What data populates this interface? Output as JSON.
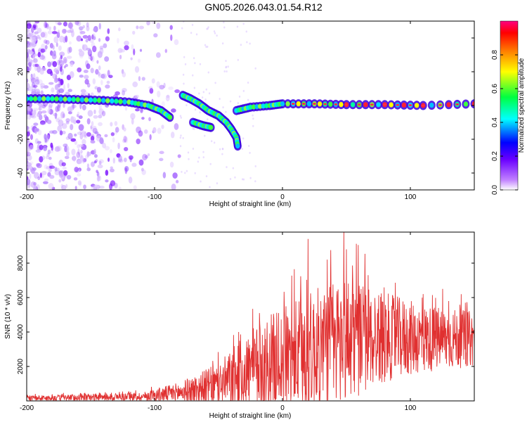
{
  "title": "GN05.2026.043.01.54.R12",
  "chart_data": [
    {
      "type": "heatmap",
      "name": "spectrogram",
      "xlabel": "Height of straight line (km)",
      "ylabel": "Frequency (Hz)",
      "xlim": [
        -200,
        150
      ],
      "ylim": [
        -50,
        50
      ],
      "xticks": [
        -200,
        -100,
        0,
        100
      ],
      "yticks": [
        -40,
        -20,
        0,
        20,
        40
      ],
      "colorbar": {
        "label": "Normalized spectral amplitude",
        "range": [
          0,
          1
        ],
        "ticks": [
          "0.0",
          "0.2",
          "0.4",
          "0.6",
          "0.8"
        ],
        "colors": [
          "#ffffff",
          "#8000ff",
          "#0000ff",
          "#00ffff",
          "#00ff00",
          "#ffff00",
          "#ff8000",
          "#ff0000",
          "#ff0080"
        ]
      },
      "ridge": [
        {
          "x": -200,
          "f": 4
        },
        {
          "x": -180,
          "f": 4
        },
        {
          "x": -160,
          "f": 3.5
        },
        {
          "x": -140,
          "f": 3
        },
        {
          "x": -120,
          "f": 2
        },
        {
          "x": -100,
          "f": 0
        },
        {
          "x": -90,
          "f": -3
        },
        {
          "x": -85,
          "f": -7
        },
        {
          "x": -78,
          "f": 6
        },
        {
          "x": -70,
          "f": 4
        },
        {
          "x": -60,
          "f": 0
        },
        {
          "x": -50,
          "f": -5
        },
        {
          "x": -40,
          "f": -12
        },
        {
          "x": -35,
          "f": -22
        },
        {
          "x": -35,
          "f": -2
        },
        {
          "x": -20,
          "f": 0
        },
        {
          "x": 0,
          "f": 1
        },
        {
          "x": 50,
          "f": 1
        },
        {
          "x": 100,
          "f": 0.5
        },
        {
          "x": 150,
          "f": 1
        }
      ]
    },
    {
      "type": "line",
      "name": "snr",
      "xlabel": "Height of straight line (km)",
      "ylabel": "SNR (10 * v/v)",
      "xlim": [
        -200,
        150
      ],
      "ylim": [
        0,
        9800
      ],
      "xticks": [
        -200,
        -100,
        0,
        100
      ],
      "yticks": [
        2000,
        4000,
        6000,
        8000
      ],
      "color": "#e03030",
      "envelope": [
        {
          "x": -200,
          "base": 150,
          "amp": 150
        },
        {
          "x": -110,
          "base": 250,
          "amp": 250
        },
        {
          "x": -80,
          "base": 500,
          "amp": 600
        },
        {
          "x": -50,
          "base": 900,
          "amp": 1300
        },
        {
          "x": -30,
          "base": 1600,
          "amp": 2200
        },
        {
          "x": -10,
          "base": 2200,
          "amp": 2800
        },
        {
          "x": 20,
          "base": 2800,
          "amp": 3500
        },
        {
          "x": 50,
          "base": 3600,
          "amp": 3800
        },
        {
          "x": 80,
          "base": 3700,
          "amp": 2600
        },
        {
          "x": 110,
          "base": 3600,
          "amp": 2000
        },
        {
          "x": 150,
          "base": 3600,
          "amp": 1600
        }
      ],
      "peaks": [
        {
          "x": 20,
          "y": 9400
        },
        {
          "x": 48,
          "y": 9800
        },
        {
          "x": 50,
          "y": 8800
        },
        {
          "x": 35,
          "y": 8200
        },
        {
          "x": 67,
          "y": 7300
        },
        {
          "x": 110,
          "y": 6200
        },
        {
          "x": 55,
          "y": 6900
        },
        {
          "x": -3,
          "y": 5100
        }
      ]
    }
  ]
}
